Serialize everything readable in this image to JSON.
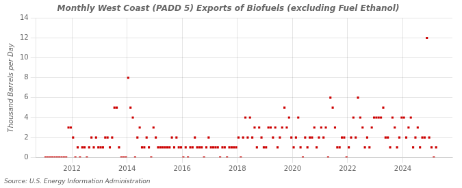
{
  "chart_data": {
    "type": "scatter",
    "title": "Monthly West Coast (PADD 5) Exports of Biofuels (excluding Fuel Ethanol)",
    "ylabel": "Thousand Barrels per Day",
    "annotations": [
      "Source: U.S. Energy Information Administration"
    ],
    "color": "#cc0000",
    "marker": "square",
    "grid": true,
    "xlim": [
      2010.7,
      2025.8
    ],
    "xticks": [
      2012,
      2014,
      2016,
      2018,
      2020,
      2022,
      2024
    ],
    "ylim": [
      0,
      14
    ],
    "yticks": [
      0,
      2,
      4,
      6,
      8,
      10,
      12,
      14
    ],
    "x": [
      2011.0416666666667,
      2011.125,
      2011.2083333333333,
      2011.2916666666667,
      2011.375,
      2011.4583333333333,
      2011.5416666666667,
      2011.625,
      2011.7083333333333,
      2011.7916666666667,
      2011.875,
      2011.9583333333333,
      2012.0416666666667,
      2012.125,
      2012.2083333333333,
      2012.2916666666667,
      2012.375,
      2012.4583333333333,
      2012.5416666666667,
      2012.625,
      2012.7083333333333,
      2012.7916666666667,
      2012.875,
      2012.9583333333333,
      2013.0416666666667,
      2013.125,
      2013.2083333333333,
      2013.2916666666667,
      2013.375,
      2013.4583333333333,
      2013.5416666666667,
      2013.625,
      2013.7083333333333,
      2013.7916666666667,
      2013.875,
      2013.9583333333333,
      2014.0416666666667,
      2014.125,
      2014.2083333333333,
      2014.2916666666667,
      2014.375,
      2014.4583333333333,
      2014.5416666666667,
      2014.625,
      2014.7083333333333,
      2014.7916666666667,
      2014.875,
      2014.9583333333333,
      2015.0416666666667,
      2015.125,
      2015.2083333333333,
      2015.2916666666667,
      2015.375,
      2015.4583333333333,
      2015.5416666666667,
      2015.625,
      2015.7083333333333,
      2015.7916666666667,
      2015.875,
      2015.9583333333333,
      2016.0416666666667,
      2016.125,
      2016.2083333333333,
      2016.2916666666667,
      2016.375,
      2016.4583333333333,
      2016.5416666666667,
      2016.625,
      2016.7083333333333,
      2016.7916666666667,
      2016.875,
      2016.9583333333333,
      2017.0416666666667,
      2017.125,
      2017.2083333333333,
      2017.2916666666667,
      2017.375,
      2017.4583333333333,
      2017.5416666666667,
      2017.625,
      2017.7083333333333,
      2017.7916666666667,
      2017.875,
      2017.9583333333333,
      2018.0416666666667,
      2018.125,
      2018.2083333333333,
      2018.2916666666667,
      2018.375,
      2018.4583333333333,
      2018.5416666666667,
      2018.625,
      2018.7083333333333,
      2018.7916666666667,
      2018.875,
      2018.9583333333333,
      2019.0416666666667,
      2019.125,
      2019.2083333333333,
      2019.2916666666667,
      2019.375,
      2019.4583333333333,
      2019.5416666666667,
      2019.625,
      2019.7083333333333,
      2019.7916666666667,
      2019.875,
      2019.9583333333333,
      2020.0416666666667,
      2020.125,
      2020.2083333333333,
      2020.2916666666667,
      2020.375,
      2020.4583333333333,
      2020.5416666666667,
      2020.625,
      2020.7083333333333,
      2020.7916666666667,
      2020.875,
      2020.9583333333333,
      2021.0416666666667,
      2021.125,
      2021.2083333333333,
      2021.2916666666667,
      2021.375,
      2021.4583333333333,
      2021.5416666666667,
      2021.625,
      2021.7083333333333,
      2021.7916666666667,
      2021.875,
      2021.9583333333333,
      2022.0416666666667,
      2022.125,
      2022.2083333333333,
      2022.2916666666667,
      2022.375,
      2022.4583333333333,
      2022.5416666666667,
      2022.625,
      2022.7083333333333,
      2022.7916666666667,
      2022.875,
      2022.9583333333333,
      2023.0416666666667,
      2023.125,
      2023.2083333333333,
      2023.2916666666667,
      2023.375,
      2023.4583333333333,
      2023.5416666666667,
      2023.625,
      2023.7083333333333,
      2023.7916666666667,
      2023.875,
      2023.9583333333333,
      2024.0416666666667,
      2024.125,
      2024.2083333333333,
      2024.2916666666667,
      2024.375,
      2024.4583333333333,
      2024.5416666666667,
      2024.625,
      2024.7083333333333,
      2024.7916666666667,
      2024.875,
      2024.9583333333333,
      2025.0416666666667,
      2025.125,
      2025.2083333333333
    ],
    "values": [
      0,
      0,
      0,
      0,
      0,
      0,
      0,
      0,
      0,
      0,
      3,
      3,
      2,
      0,
      1,
      0,
      1,
      1,
      0,
      1,
      2,
      1,
      2,
      1,
      1,
      1,
      2,
      2,
      1,
      2,
      5,
      5,
      1,
      0,
      0,
      0,
      8,
      5,
      4,
      0,
      2,
      3,
      1,
      1,
      2,
      1,
      0,
      3,
      2,
      1,
      1,
      1,
      1,
      1,
      1,
      2,
      1,
      2,
      1,
      1,
      0,
      1,
      0,
      1,
      1,
      2,
      1,
      1,
      1,
      0,
      1,
      2,
      1,
      1,
      1,
      1,
      0,
      1,
      1,
      0,
      1,
      1,
      1,
      1,
      2,
      0,
      2,
      4,
      2,
      4,
      2,
      3,
      1,
      3,
      2,
      1,
      1,
      3,
      3,
      2,
      3,
      1,
      2,
      3,
      5,
      3,
      4,
      2,
      1,
      2,
      4,
      1,
      0,
      2,
      1,
      2,
      2,
      3,
      1,
      2,
      3,
      2,
      3,
      0,
      6,
      5,
      3,
      1,
      1,
      2,
      2,
      0,
      1,
      2,
      4,
      2,
      6,
      4,
      3,
      1,
      2,
      1,
      3,
      4,
      4,
      4,
      4,
      5,
      2,
      2,
      1,
      4,
      3,
      1,
      2,
      4,
      4,
      2,
      3,
      4,
      1,
      2,
      3,
      1,
      2,
      2,
      12,
      2,
      1,
      0,
      1
    ]
  }
}
